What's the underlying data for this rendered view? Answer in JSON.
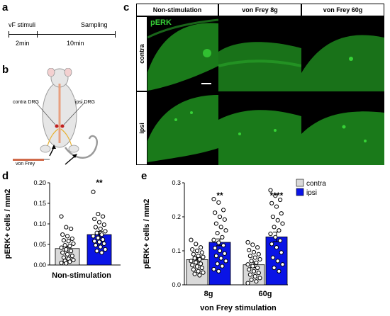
{
  "panels": {
    "a": "a",
    "b": "b",
    "c": "c",
    "d": "d",
    "e": "e"
  },
  "panel_a": {
    "stimuli": "vF stimuli",
    "sampling": "Sampling",
    "t1": "2min",
    "t2": "10min"
  },
  "panel_b": {
    "contra": "contra DRG",
    "ipsi": "ipsi DRG",
    "vonfrey": "von Frey"
  },
  "panel_c": {
    "columns": [
      "Non-stimulation",
      "von Frey 8g",
      "von Frey 60g"
    ],
    "rows": [
      "contra",
      "ipsi"
    ],
    "marker": "pERK",
    "colors": {
      "tissue": "#1f8f1f",
      "background": "#000000",
      "stain": "#37d237"
    }
  },
  "chart_data": [
    {
      "type": "bar",
      "panel": "d",
      "categories": [
        "contra",
        "ipsi"
      ],
      "values": [
        0.04,
        0.074
      ],
      "errors": [
        0.006,
        0.008
      ],
      "colors": [
        "#d9d9d9",
        "#0a14e6"
      ],
      "ylabel": "pERK+ cells / mm2",
      "xlabel": "Non-stimulation",
      "ylim": [
        0,
        0.2
      ],
      "yticks": [
        "0.00",
        "0.05",
        "0.10",
        "0.15",
        "0.20"
      ],
      "significance": [
        {
          "category": "ipsi",
          "label": "**"
        }
      ],
      "points": {
        "contra": [
          0.118,
          0.092,
          0.088,
          0.074,
          0.07,
          0.064,
          0.06,
          0.058,
          0.052,
          0.048,
          0.046,
          0.042,
          0.038,
          0.034,
          0.03,
          0.026,
          0.022,
          0.018,
          0.015,
          0.012,
          0.01,
          0.008,
          0.005,
          0.004
        ],
        "ipsi": [
          0.178,
          0.124,
          0.118,
          0.112,
          0.104,
          0.098,
          0.092,
          0.088,
          0.082,
          0.078,
          0.074,
          0.07,
          0.066,
          0.062,
          0.058,
          0.056,
          0.052,
          0.048,
          0.044,
          0.038,
          0.034,
          0.03
        ]
      }
    },
    {
      "type": "bar",
      "panel": "e",
      "categories": [
        "8g",
        "60g"
      ],
      "series": [
        {
          "name": "contra",
          "values": [
            0.074,
            0.059
          ],
          "errors": [
            0.007,
            0.008
          ],
          "color": "#d9d9d9"
        },
        {
          "name": "ipsi",
          "values": [
            0.125,
            0.141
          ],
          "errors": [
            0.01,
            0.014
          ],
          "color": "#0a14e6"
        }
      ],
      "ylabel": "pERK+ cells / mm2",
      "xlabel": "von Frey stimulation",
      "ylim": [
        0,
        0.3
      ],
      "yticks": [
        "0.0",
        "0.1",
        "0.2",
        "0.3"
      ],
      "legend": "top-right",
      "significance": [
        {
          "category": "8g",
          "label": "**"
        },
        {
          "category": "60g",
          "label": "****"
        }
      ],
      "points": {
        "8g_contra": [
          0.132,
          0.12,
          0.11,
          0.104,
          0.1,
          0.095,
          0.09,
          0.085,
          0.082,
          0.078,
          0.075,
          0.07,
          0.066,
          0.062,
          0.058,
          0.054,
          0.05,
          0.045,
          0.04,
          0.036,
          0.032,
          0.028
        ],
        "8g_ipsi": [
          0.252,
          0.242,
          0.22,
          0.212,
          0.2,
          0.192,
          0.18,
          0.17,
          0.16,
          0.152,
          0.14,
          0.132,
          0.124,
          0.116,
          0.108,
          0.1,
          0.092,
          0.085,
          0.078,
          0.07,
          0.062,
          0.055,
          0.046,
          0.04
        ],
        "60g_contra": [
          0.125,
          0.118,
          0.11,
          0.102,
          0.096,
          0.09,
          0.085,
          0.08,
          0.075,
          0.07,
          0.065,
          0.06,
          0.055,
          0.05,
          0.045,
          0.04,
          0.035,
          0.03,
          0.025,
          0.02,
          0.015,
          0.01,
          0.005
        ],
        "60g_ipsi": [
          0.278,
          0.262,
          0.25,
          0.24,
          0.23,
          0.21,
          0.2,
          0.19,
          0.18,
          0.17,
          0.16,
          0.15,
          0.14,
          0.13,
          0.12,
          0.11,
          0.095,
          0.08,
          0.07,
          0.06,
          0.05,
          0.04
        ]
      }
    }
  ]
}
